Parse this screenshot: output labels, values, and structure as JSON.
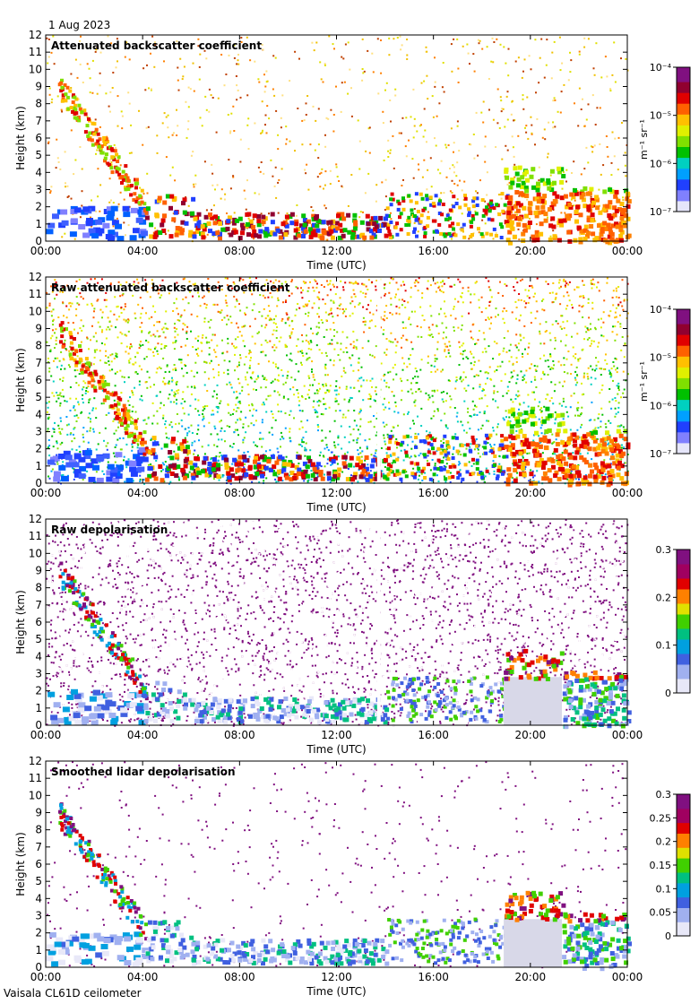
{
  "header": {
    "date": "1 Aug 2023"
  },
  "footer": {
    "instrument": "Vaisala CL61D ceilometer"
  },
  "chart_data": [
    {
      "type": "heatmap",
      "title": "Attenuated backscatter coefficient",
      "xlabel": "Time (UTC)",
      "ylabel": "Height (km)",
      "x_ticks": [
        "00:00",
        "04:00",
        "08:00",
        "12:00",
        "16:00",
        "20:00",
        "00:00"
      ],
      "y_ticks": [
        "0",
        "1",
        "2",
        "3",
        "4",
        "5",
        "6",
        "7",
        "8",
        "9",
        "10",
        "11",
        "12"
      ],
      "ylim": [
        0,
        12
      ],
      "xlim_hours": [
        0,
        24
      ],
      "colorbar": {
        "scale": "log",
        "ticks": [
          "10⁻⁷",
          "10⁻⁶",
          "10⁻⁵",
          "10⁻⁴"
        ],
        "label": "m⁻¹ sr⁻¹"
      }
    },
    {
      "type": "heatmap",
      "title": "Raw attenuated backscatter coefficient",
      "xlabel": "Time (UTC)",
      "ylabel": "Height (km)",
      "x_ticks": [
        "00:00",
        "04:00",
        "08:00",
        "12:00",
        "16:00",
        "20:00",
        "00:00"
      ],
      "y_ticks": [
        "0",
        "1",
        "2",
        "3",
        "4",
        "5",
        "6",
        "7",
        "8",
        "9",
        "10",
        "11",
        "12"
      ],
      "ylim": [
        0,
        12
      ],
      "xlim_hours": [
        0,
        24
      ],
      "colorbar": {
        "scale": "log",
        "ticks": [
          "10⁻⁷",
          "10⁻⁶",
          "10⁻⁵",
          "10⁻⁴"
        ],
        "label": "m⁻¹ sr⁻¹"
      }
    },
    {
      "type": "heatmap",
      "title": "Raw depolarisation",
      "xlabel": "Time (UTC)",
      "ylabel": "Height (km)",
      "x_ticks": [
        "00:00",
        "04:00",
        "08:00",
        "12:00",
        "16:00",
        "20:00",
        "00:00"
      ],
      "y_ticks": [
        "0",
        "1",
        "2",
        "3",
        "4",
        "5",
        "6",
        "7",
        "8",
        "9",
        "10",
        "11",
        "12"
      ],
      "ylim": [
        0,
        12
      ],
      "xlim_hours": [
        0,
        24
      ],
      "colorbar": {
        "scale": "linear",
        "ticks": [
          "0",
          "0.1",
          "0.2",
          "0.3"
        ],
        "label": ""
      }
    },
    {
      "type": "heatmap",
      "title": "Smoothed lidar depolarisation",
      "xlabel": "Time (UTC)",
      "ylabel": "Height (km)",
      "x_ticks": [
        "00:00",
        "04:00",
        "08:00",
        "12:00",
        "16:00",
        "20:00",
        "00:00"
      ],
      "y_ticks": [
        "0",
        "1",
        "2",
        "3",
        "4",
        "5",
        "6",
        "7",
        "8",
        "9",
        "10",
        "11",
        "12"
      ],
      "ylim": [
        0,
        12
      ],
      "xlim_hours": [
        0,
        24
      ],
      "colorbar": {
        "scale": "linear",
        "ticks": [
          "0",
          "0.05",
          "0.1",
          "0.15",
          "0.2",
          "0.25",
          "0.3"
        ],
        "label": ""
      }
    }
  ]
}
